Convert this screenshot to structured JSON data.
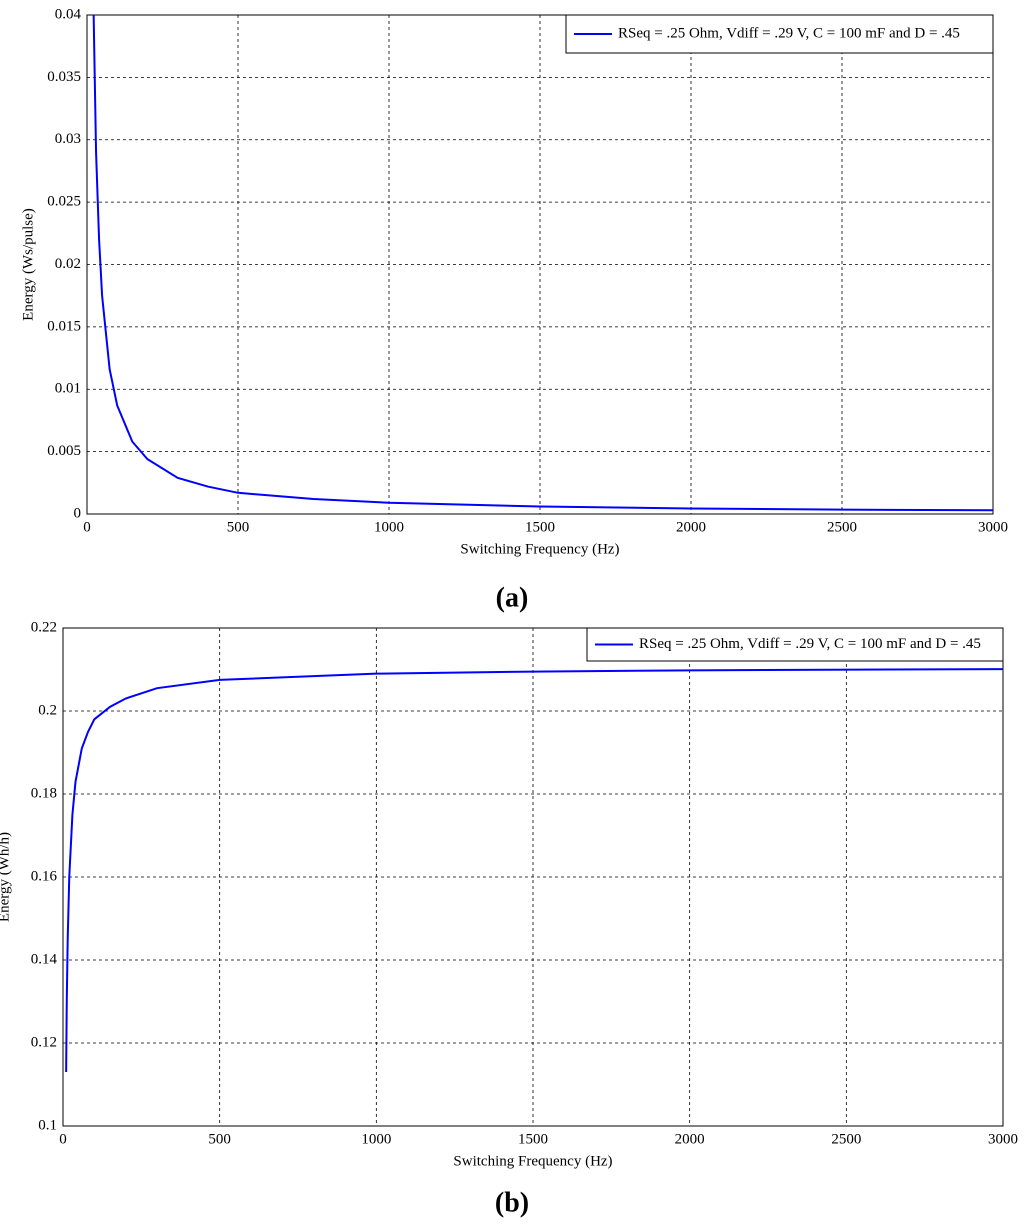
{
  "chart_data": [
    {
      "type": "line",
      "label": "(a)",
      "xlabel": "Switching Frequency (Hz)",
      "ylabel": "Energy  (Ws/pulse)",
      "x": [
        22,
        30,
        40,
        50,
        75,
        100,
        150,
        200,
        300,
        400,
        500,
        750,
        1000,
        1500,
        2000,
        2500,
        3000
      ],
      "series": [
        {
          "name": "RSeq = .25 Ohm, Vdiff = .29 V, C = 100 mF and D = .45",
          "color": "#0000ff",
          "values": [
            0.04,
            0.029,
            0.022,
            0.0175,
            0.0116,
            0.0087,
            0.0058,
            0.0044,
            0.0029,
            0.0022,
            0.0017,
            0.0012,
            0.0009,
            0.0006,
            0.00044,
            0.00035,
            0.0003
          ]
        }
      ],
      "xlim": [
        0,
        3000
      ],
      "xticks": [
        0,
        500,
        1000,
        1500,
        2000,
        2500,
        3000
      ],
      "ylim": [
        0,
        0.04
      ],
      "yticks": [
        0,
        0.005,
        0.01,
        0.015,
        0.02,
        0.025,
        0.03,
        0.035,
        0.04
      ],
      "grid": true,
      "legend": "upper right"
    },
    {
      "type": "line",
      "label": "(b)",
      "xlabel": "Switching Frequency (Hz)",
      "ylabel": "Energy (Wh/h)",
      "x": [
        10,
        12,
        15,
        20,
        30,
        40,
        60,
        80,
        100,
        150,
        200,
        300,
        500,
        1000,
        1500,
        2000,
        3000
      ],
      "series": [
        {
          "name": "RSeq = .25 Ohm, Vdiff = .29 V, C = 100 mF and D = .45",
          "color": "#0000ff",
          "values": [
            0.113,
            0.13,
            0.145,
            0.16,
            0.175,
            0.183,
            0.191,
            0.195,
            0.198,
            0.201,
            0.203,
            0.2055,
            0.2075,
            0.209,
            0.2095,
            0.2098,
            0.2101
          ]
        }
      ],
      "xlim": [
        0,
        3000
      ],
      "xticks": [
        0,
        500,
        1000,
        1500,
        2000,
        2500,
        3000
      ],
      "ylim": [
        0.1,
        0.22
      ],
      "yticks": [
        0.1,
        0.12,
        0.14,
        0.16,
        0.18,
        0.2,
        0.22
      ],
      "grid": true,
      "legend": "upper right"
    }
  ]
}
